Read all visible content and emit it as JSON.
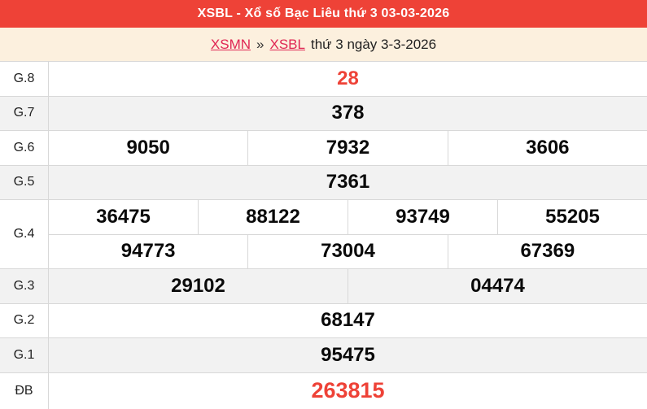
{
  "header": {
    "title": "XSBL - Xổ số Bạc Liêu thứ 3 03-03-2026"
  },
  "breadcrumb": {
    "xsmn": "XSMN",
    "separator": "»",
    "xsbl": "XSBL",
    "suffix": "thứ 3 ngày 3-3-2026"
  },
  "colors": {
    "primary_red": "#ee4237",
    "link_red": "#e02553",
    "cream": "#fcf0de",
    "row_alt": "#f2f2f2",
    "border": "#d8d8d8"
  },
  "results": {
    "rows": [
      {
        "label": "G.8",
        "highlight": true,
        "groups": [
          [
            "28"
          ]
        ]
      },
      {
        "label": "G.7",
        "highlight": false,
        "groups": [
          [
            "378"
          ]
        ]
      },
      {
        "label": "G.6",
        "highlight": false,
        "groups": [
          [
            "9050",
            "7932",
            "3606"
          ]
        ]
      },
      {
        "label": "G.5",
        "highlight": false,
        "groups": [
          [
            "7361"
          ]
        ]
      },
      {
        "label": "G.4",
        "highlight": false,
        "groups": [
          [
            "36475",
            "88122",
            "93749",
            "55205"
          ],
          [
            "94773",
            "73004",
            "67369"
          ]
        ]
      },
      {
        "label": "G.3",
        "highlight": false,
        "groups": [
          [
            "29102",
            "04474"
          ]
        ]
      },
      {
        "label": "G.2",
        "highlight": false,
        "groups": [
          [
            "68147"
          ]
        ]
      },
      {
        "label": "G.1",
        "highlight": false,
        "groups": [
          [
            "95475"
          ]
        ]
      },
      {
        "label": "ĐB",
        "highlight": true,
        "groups": [
          [
            "263815"
          ]
        ]
      }
    ]
  }
}
